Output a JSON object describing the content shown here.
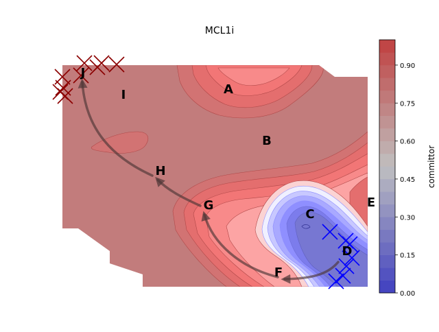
{
  "chart_data": {
    "type": "contour",
    "title": "MCL1i",
    "colorbar": {
      "label": "committor",
      "range": [
        0.0,
        1.0
      ],
      "ticks": [
        "0.00",
        "0.15",
        "0.30",
        "0.45",
        "0.60",
        "0.75",
        "0.90"
      ],
      "tick_values": [
        0.0,
        0.15,
        0.3,
        0.45,
        0.6,
        0.75,
        0.9
      ],
      "levels": 20,
      "colormap": "bwr",
      "alpha": 0.5
    },
    "state_labels": [
      "A",
      "B",
      "C",
      "D",
      "E",
      "F",
      "G",
      "H",
      "I",
      "J"
    ],
    "pathway": [
      "D",
      "F",
      "G",
      "H",
      "J"
    ],
    "markers": [
      {
        "name": "product-basin-samples",
        "color": "#8b0000",
        "count": 9,
        "near": "J"
      },
      {
        "name": "reactant-basin-samples",
        "color": "#0000ff",
        "count": 7,
        "near": "D"
      }
    ],
    "background": "#ffffff",
    "axes_visible": false
  }
}
